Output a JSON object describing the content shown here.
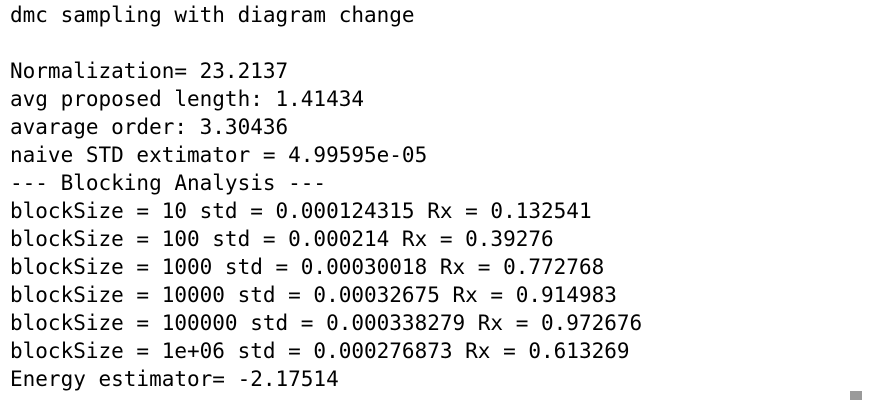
{
  "terminal": {
    "lines": [
      "dmc sampling with diagram change",
      "",
      "Normalization= 23.2137",
      "avg proposed length: 1.41434",
      "avarage order: 3.30436",
      "naive STD extimator = 4.99595e-05",
      "--- Blocking Analysis ---",
      "blockSize = 10 std = 0.000124315 Rx = 0.132541",
      "blockSize = 100 std = 0.000214 Rx = 0.39276",
      "blockSize = 1000 std = 0.00030018 Rx = 0.772768",
      "blockSize = 10000 std = 0.00032675 Rx = 0.914983",
      "blockSize = 100000 std = 0.000338279 Rx = 0.972676",
      "blockSize = 1e+06 std = 0.000276873 Rx = 0.613269",
      "Energy estimator= -2.17514"
    ]
  }
}
